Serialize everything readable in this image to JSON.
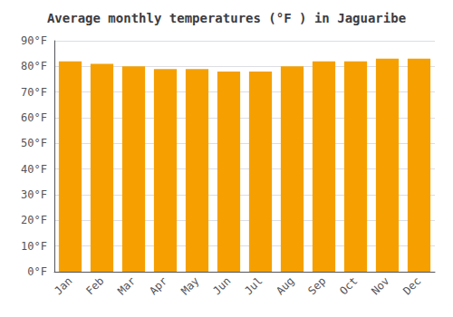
{
  "chart_data": {
    "type": "bar",
    "title": "Average monthly temperatures (°F ) in Jaguaribe",
    "categories": [
      "Jan",
      "Feb",
      "Mar",
      "Apr",
      "May",
      "Jun",
      "Jul",
      "Aug",
      "Sep",
      "Oct",
      "Nov",
      "Dec"
    ],
    "values": [
      82,
      81,
      80,
      79,
      79,
      78,
      78,
      80,
      82,
      82,
      83,
      83
    ],
    "color": "#F5A000",
    "ylim": [
      0,
      90
    ],
    "yticks": [
      {
        "value": 0,
        "label": "0°F"
      },
      {
        "value": 10,
        "label": "10°F"
      },
      {
        "value": 20,
        "label": "20°F"
      },
      {
        "value": 30,
        "label": "30°F"
      },
      {
        "value": 40,
        "label": "40°F"
      },
      {
        "value": 50,
        "label": "50°F"
      },
      {
        "value": 60,
        "label": "60°F"
      },
      {
        "value": 70,
        "label": "70°F"
      },
      {
        "value": 80,
        "label": "80°F"
      },
      {
        "value": 90,
        "label": "90°F"
      }
    ],
    "grid": true
  }
}
